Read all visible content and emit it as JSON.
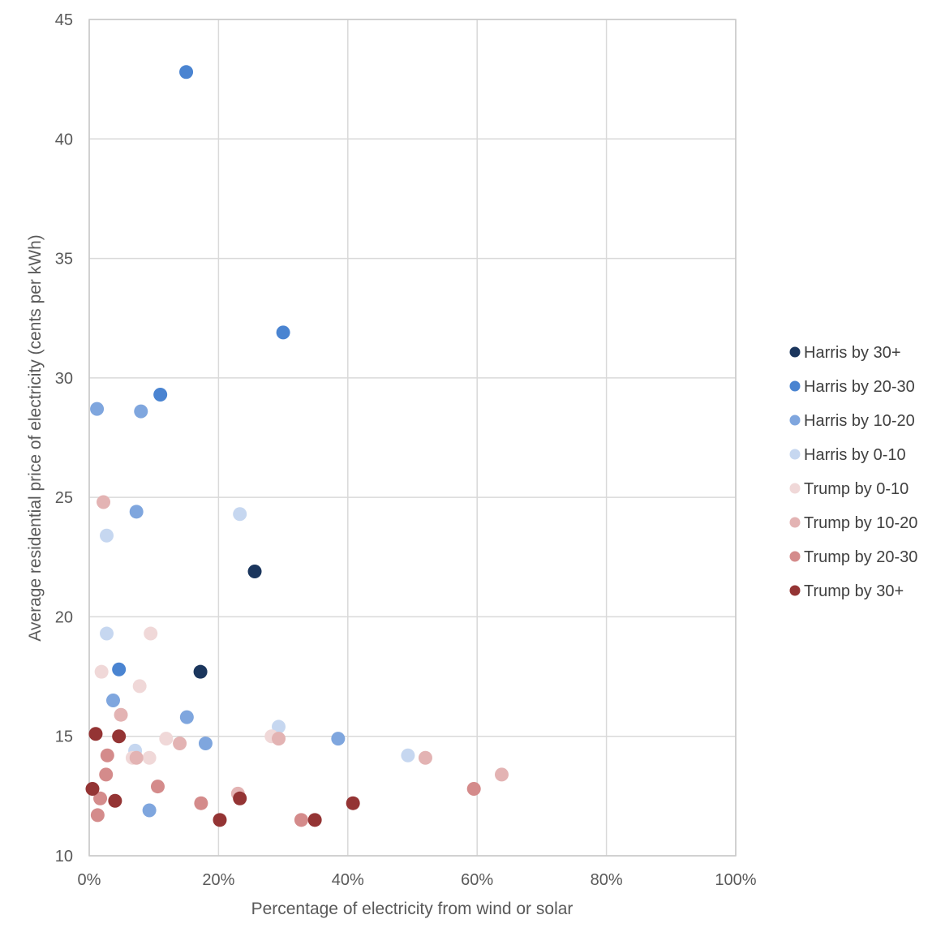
{
  "chart_data": {
    "type": "scatter",
    "title": "",
    "xlabel": "Percentage of electricity from wind or solar",
    "ylabel": "Average residential price of electricity (cents per kWh)",
    "xlim": [
      0,
      100
    ],
    "ylim": [
      10,
      45
    ],
    "x_ticks": [
      "0%",
      "20%",
      "40%",
      "60%",
      "80%",
      "100%"
    ],
    "y_ticks": [
      "10",
      "15",
      "20",
      "25",
      "30",
      "35",
      "40",
      "45"
    ],
    "grid": true,
    "legend_position": "right",
    "series": [
      {
        "name": "Harris by 30+",
        "color": "#1b365d",
        "points": [
          [
            17.2,
            17.7
          ],
          [
            25.6,
            21.9
          ]
        ]
      },
      {
        "name": "Harris by 20-30",
        "color": "#4a84d1",
        "points": [
          [
            15.0,
            42.8
          ],
          [
            11.0,
            29.3
          ],
          [
            30.0,
            31.9
          ],
          [
            4.6,
            17.8
          ]
        ]
      },
      {
        "name": "Harris by 10-20",
        "color": "#7fa6de",
        "points": [
          [
            1.2,
            28.7
          ],
          [
            8.0,
            28.6
          ],
          [
            7.3,
            24.4
          ],
          [
            3.7,
            16.5
          ],
          [
            15.1,
            15.8
          ],
          [
            18.0,
            14.7
          ],
          [
            38.5,
            14.9
          ],
          [
            9.3,
            11.9
          ]
        ]
      },
      {
        "name": "Harris by 0-10",
        "color": "#c6d7f0",
        "points": [
          [
            2.7,
            23.4
          ],
          [
            23.3,
            24.3
          ],
          [
            2.7,
            19.3
          ],
          [
            29.3,
            15.4
          ],
          [
            7.1,
            14.4
          ],
          [
            49.3,
            14.2
          ]
        ]
      },
      {
        "name": "Trump by 0-10",
        "color": "#f0d8d8",
        "points": [
          [
            9.5,
            19.3
          ],
          [
            1.9,
            17.7
          ],
          [
            7.8,
            17.1
          ],
          [
            11.9,
            14.9
          ],
          [
            28.2,
            15.0
          ],
          [
            6.7,
            14.1
          ],
          [
            9.3,
            14.1
          ]
        ]
      },
      {
        "name": "Trump by 10-20",
        "color": "#e3b3b3",
        "points": [
          [
            2.2,
            24.8
          ],
          [
            4.9,
            15.9
          ],
          [
            14.0,
            14.7
          ],
          [
            29.3,
            14.9
          ],
          [
            52.0,
            14.1
          ],
          [
            63.8,
            13.4
          ],
          [
            23.0,
            12.6
          ],
          [
            7.3,
            14.1
          ]
        ]
      },
      {
        "name": "Trump by 20-30",
        "color": "#d48b8b",
        "points": [
          [
            2.8,
            14.2
          ],
          [
            2.6,
            13.4
          ],
          [
            10.6,
            12.9
          ],
          [
            1.7,
            12.4
          ],
          [
            1.3,
            11.7
          ],
          [
            17.3,
            12.2
          ],
          [
            32.8,
            11.5
          ],
          [
            59.5,
            12.8
          ]
        ]
      },
      {
        "name": "Trump by 30+",
        "color": "#943434",
        "points": [
          [
            1.0,
            15.1
          ],
          [
            4.6,
            15.0
          ],
          [
            0.5,
            12.8
          ],
          [
            4.0,
            12.3
          ],
          [
            20.2,
            11.5
          ],
          [
            23.3,
            12.4
          ],
          [
            34.9,
            11.5
          ],
          [
            40.8,
            12.2
          ]
        ]
      }
    ]
  }
}
